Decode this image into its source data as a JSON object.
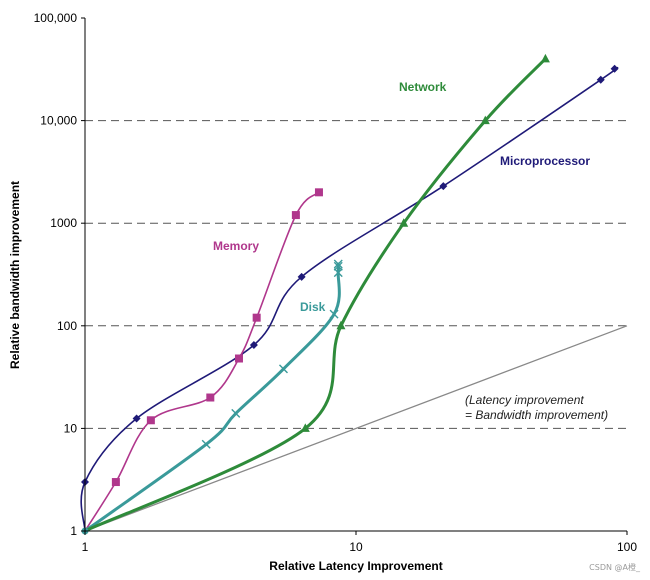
{
  "chart_data": {
    "type": "line",
    "title": "",
    "xlabel": "Relative Latency Improvement",
    "ylabel": "Relative bandwidth improvement",
    "x_scale": "log",
    "y_scale": "log",
    "xlim": [
      1,
      100
    ],
    "ylim": [
      1,
      100000
    ],
    "x_ticks": [
      1,
      10,
      100
    ],
    "x_tick_labels": [
      "1",
      "10",
      "100"
    ],
    "y_ticks": [
      1,
      10,
      100,
      1000,
      10000,
      100000
    ],
    "y_tick_labels": [
      "1",
      "10",
      "100",
      "1000",
      "10,000",
      "100,000"
    ],
    "grid": "dashed horizontal lines at 10, 100, 1000, 10,000",
    "series": [
      {
        "name": "Microprocessor",
        "color": "#1f1a78",
        "marker": "diamond",
        "x": [
          1,
          1,
          1.55,
          4.2,
          6.3,
          21,
          80,
          90
        ],
        "y": [
          1,
          3,
          12.5,
          65,
          300,
          2300,
          25000,
          32000
        ]
      },
      {
        "name": "Memory",
        "color": "#b0378c",
        "marker": "square",
        "x": [
          1,
          1.3,
          1.75,
          2.9,
          3.7,
          4.3,
          6,
          7.3
        ],
        "y": [
          1,
          3,
          12,
          20,
          48,
          120,
          1200,
          2000
        ]
      },
      {
        "name": "Disk",
        "color": "#3a9a9a",
        "marker": "x",
        "x": [
          1,
          2.8,
          3.6,
          5.4,
          8.3,
          8.6,
          8.6,
          8.6
        ],
        "y": [
          1,
          7,
          14,
          38,
          130,
          330,
          380,
          400
        ]
      },
      {
        "name": "Network",
        "color": "#2e8b3a",
        "marker": "triangle",
        "x": [
          1,
          6.5,
          8.8,
          15,
          30,
          50
        ],
        "y": [
          1,
          10,
          100,
          1000,
          10000,
          40000
        ]
      },
      {
        "name": "",
        "color": "#888888",
        "marker": "none",
        "x": [
          1,
          100
        ],
        "y": [
          1,
          100
        ]
      }
    ],
    "annotations": [
      "(Latency improvement",
      "= Bandwidth improvement)"
    ]
  },
  "watermark": "CSDN @A橙_"
}
